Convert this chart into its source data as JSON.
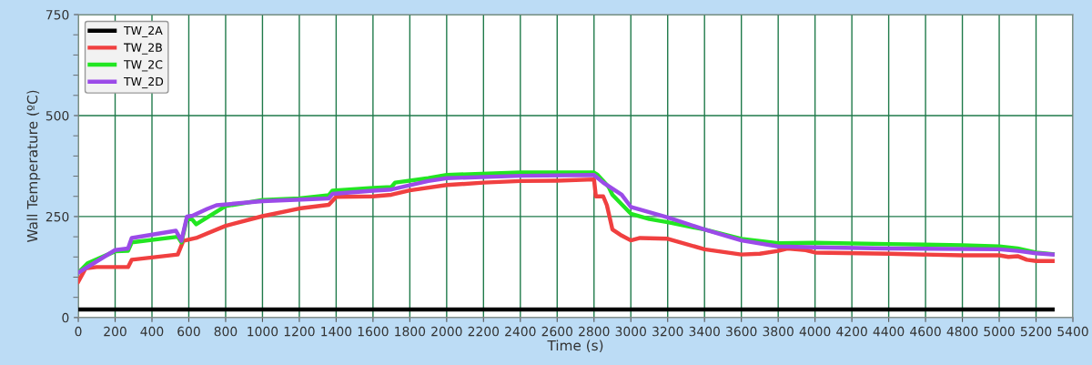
{
  "chart_data": {
    "type": "line",
    "xlabel": "Time (s)",
    "ylabel": "Wall Temperature (ºC)",
    "xlim": [
      0,
      5400
    ],
    "xticks": [
      0,
      200,
      400,
      600,
      800,
      1000,
      1200,
      1400,
      1600,
      1800,
      2000,
      2200,
      2400,
      2600,
      2800,
      3000,
      3200,
      3400,
      3600,
      3800,
      4000,
      4200,
      4400,
      4600,
      4800,
      5000,
      5200,
      5400
    ],
    "ylim": [
      0,
      750
    ],
    "yticks": [
      0,
      250,
      500,
      750
    ],
    "grid": true,
    "legend": "top left",
    "series": [
      {
        "name": "TW_2A",
        "color": "#000000",
        "x": [
          0,
          5290
        ],
        "values": [
          20,
          20
        ]
      },
      {
        "name": "TW_2B",
        "color": "#f04040",
        "x": [
          0,
          40,
          100,
          270,
          290,
          540,
          570,
          640,
          800,
          1000,
          1200,
          1360,
          1400,
          1600,
          1700,
          1800,
          2000,
          2200,
          2400,
          2600,
          2800,
          2810,
          2850,
          2870,
          2900,
          2950,
          3000,
          3050,
          3200,
          3400,
          3600,
          3700,
          3800,
          3850,
          3950,
          4000,
          4400,
          4800,
          5000,
          5050,
          5100,
          5150,
          5200,
          5290
        ],
        "values": [
          89,
          122,
          125,
          125,
          143,
          156,
          190,
          197,
          227,
          251,
          270,
          279,
          299,
          300,
          304,
          315,
          328,
          334,
          338,
          339,
          342,
          300,
          300,
          278,
          218,
          203,
          191,
          197,
          195,
          169,
          156,
          158,
          165,
          171,
          167,
          161,
          158,
          154,
          154,
          150,
          152,
          143,
          140,
          140
        ]
      },
      {
        "name": "TW_2C",
        "color": "#22e622",
        "x": [
          0,
          50,
          200,
          270,
          290,
          540,
          560,
          590,
          620,
          640,
          800,
          1000,
          1200,
          1360,
          1380,
          1600,
          1700,
          1720,
          1900,
          2000,
          2400,
          2800,
          2820,
          2880,
          2900,
          3000,
          3100,
          3200,
          3400,
          3600,
          3800,
          4000,
          4400,
          4800,
          5000,
          5100,
          5200,
          5290
        ],
        "values": [
          111,
          134,
          164,
          165,
          186,
          200,
          186,
          246,
          242,
          231,
          276,
          291,
          295,
          303,
          314,
          321,
          323,
          334,
          345,
          353,
          359,
          359,
          353,
          323,
          304,
          257,
          244,
          236,
          218,
          195,
          184,
          185,
          182,
          179,
          176,
          171,
          161,
          157
        ]
      },
      {
        "name": "TW_2D",
        "color": "#9b4be8",
        "x": [
          0,
          200,
          270,
          290,
          530,
          560,
          590,
          620,
          700,
          750,
          1000,
          1360,
          1380,
          1600,
          1700,
          1900,
          2000,
          2400,
          2800,
          2850,
          2950,
          3000,
          3200,
          3400,
          3600,
          3800,
          4000,
          4400,
          5000,
          5100,
          5200,
          5290
        ],
        "values": [
          111,
          167,
          171,
          197,
          215,
          190,
          250,
          252,
          269,
          278,
          288,
          295,
          306,
          314,
          317,
          338,
          345,
          351,
          353,
          334,
          304,
          274,
          248,
          218,
          191,
          176,
          174,
          171,
          169,
          165,
          159,
          156
        ]
      }
    ]
  }
}
